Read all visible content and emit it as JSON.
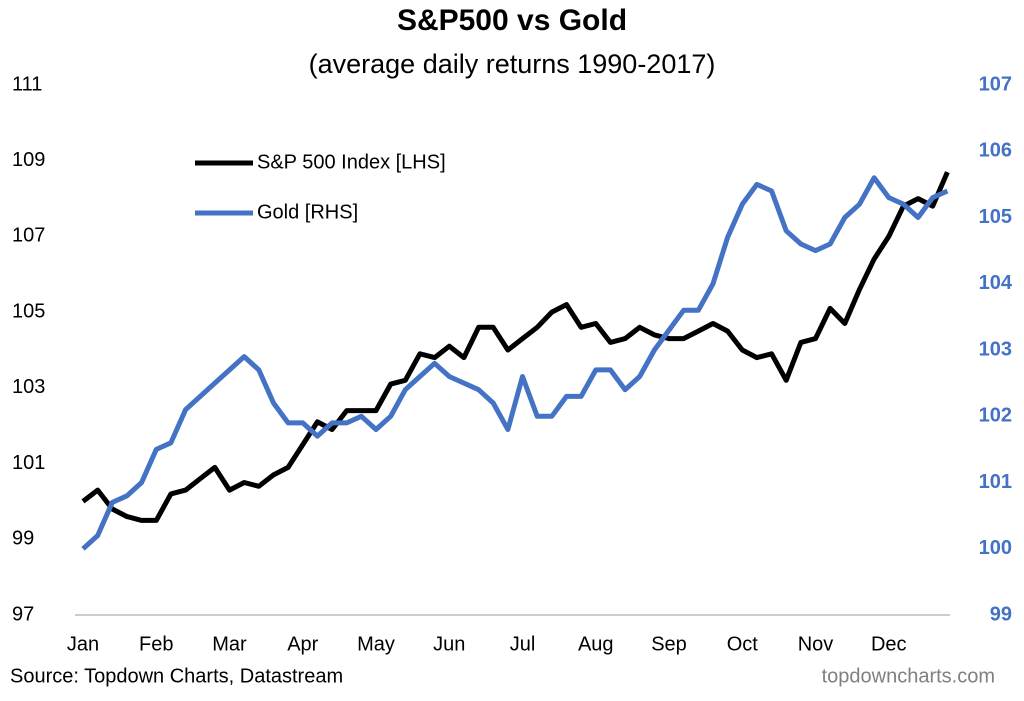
{
  "chart_data": {
    "type": "line",
    "title": "S&P500 vs Gold",
    "subtitle": "(average daily returns 1990-2017)",
    "source": "Source: Topdown Charts, Datastream",
    "watermark": "topdowncharts.com",
    "categories": [
      "Jan",
      null,
      null,
      null,
      null,
      "Feb",
      null,
      null,
      null,
      null,
      "Mar",
      null,
      null,
      null,
      null,
      "Apr",
      null,
      null,
      null,
      null,
      "May",
      null,
      null,
      null,
      null,
      "Jun",
      null,
      null,
      null,
      null,
      "Jul",
      null,
      null,
      null,
      null,
      "Aug",
      null,
      null,
      null,
      null,
      "Sep",
      null,
      null,
      null,
      null,
      "Oct",
      null,
      null,
      null,
      null,
      "Nov",
      null,
      null,
      null,
      null,
      "Dec",
      null,
      null,
      null,
      null
    ],
    "series": [
      {
        "name": "S&P 500 Index [LHS]",
        "color": "#000000",
        "axis": "y",
        "values": [
          100.0,
          100.3,
          99.8,
          99.6,
          99.5,
          99.5,
          100.2,
          100.3,
          100.6,
          100.9,
          100.3,
          100.5,
          100.4,
          100.7,
          100.9,
          101.5,
          102.1,
          101.9,
          102.4,
          102.4,
          102.4,
          103.1,
          103.2,
          103.9,
          103.8,
          104.1,
          103.8,
          104.6,
          104.6,
          104.0,
          104.3,
          104.6,
          105.0,
          105.2,
          104.6,
          104.7,
          104.2,
          104.3,
          104.6,
          104.4,
          104.3,
          104.3,
          104.5,
          104.7,
          104.5,
          104.0,
          103.8,
          103.9,
          103.2,
          104.2,
          104.3,
          105.1,
          104.7,
          105.6,
          106.4,
          107.0,
          107.8,
          108.0,
          107.8,
          108.7
        ]
      },
      {
        "name": "Gold [RHS]",
        "color": "#4472c4",
        "axis": "y2",
        "values": [
          100.0,
          100.2,
          100.7,
          100.8,
          101.0,
          101.5,
          101.6,
          102.1,
          102.3,
          102.5,
          102.7,
          102.9,
          102.7,
          102.2,
          101.9,
          101.9,
          101.7,
          101.9,
          101.9,
          102.0,
          101.8,
          102.0,
          102.4,
          102.6,
          102.8,
          102.6,
          102.5,
          102.4,
          102.2,
          101.8,
          102.6,
          102.0,
          102.0,
          102.3,
          102.3,
          102.7,
          102.7,
          102.4,
          102.6,
          103.0,
          103.3,
          103.6,
          103.6,
          104.0,
          104.7,
          105.2,
          105.5,
          105.4,
          104.8,
          104.6,
          104.5,
          104.6,
          105.0,
          105.2,
          105.6,
          105.3,
          105.2,
          105.0,
          105.3,
          105.4
        ]
      }
    ],
    "ylim": [
      97,
      111
    ],
    "yticks": [
      97,
      99,
      101,
      103,
      105,
      107,
      109,
      111
    ],
    "y2lim": [
      99,
      107
    ],
    "y2ticks": [
      99,
      100,
      101,
      102,
      103,
      104,
      105,
      106,
      107
    ],
    "y2_color": "#4472c4",
    "grid": false,
    "legend": "upper left"
  }
}
